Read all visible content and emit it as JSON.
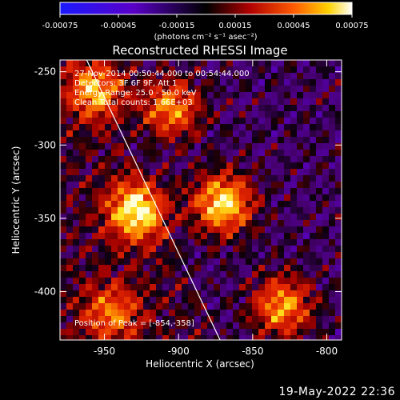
{
  "chart_data": {
    "type": "heatmap",
    "title": "Reconstructed RHESSI Image",
    "xlabel": "Heliocentric X (arcsec)",
    "ylabel": "Heliocentric Y (arcsec)",
    "xlim": [
      -980,
      -790
    ],
    "ylim": [
      -433,
      -242
    ],
    "x_ticks": [
      "-950",
      "-900",
      "-850",
      "-800"
    ],
    "x_tick_values": [
      -950,
      -900,
      -850,
      -800
    ],
    "y_ticks": [
      "-250",
      "-300",
      "-350",
      "-400"
    ],
    "y_tick_values": [
      -250,
      -300,
      -350,
      -400
    ],
    "colorbar": {
      "ticks": [
        "-0.00075",
        "-0.00045",
        "-0.00015",
        "0.00015",
        "0.00045",
        "0.00075"
      ],
      "tick_values": [
        -0.00075,
        -0.00045,
        -0.00015,
        0.00015,
        0.00045,
        0.00075
      ],
      "range": [
        -0.00075,
        0.00075
      ],
      "unit": "(photons cm⁻² s⁻¹ asec⁻²)"
    },
    "limb_line": {
      "x": [
        -962,
        -872
      ],
      "y": [
        -242,
        -433
      ]
    },
    "hot_spots": [
      {
        "x": -928,
        "y": -345,
        "level": 1.0
      },
      {
        "x": -870,
        "y": -340,
        "level": 1.0
      },
      {
        "x": -955,
        "y": -262,
        "level": 0.8
      },
      {
        "x": -905,
        "y": -275,
        "level": 0.75
      },
      {
        "x": -830,
        "y": -410,
        "level": 0.8
      },
      {
        "x": -945,
        "y": -415,
        "level": 0.6
      }
    ],
    "annotations": [
      "27-Nov-2014 00:50:44.000 to 00:54:44.000",
      "Detectors: 3F 6F 9F, Att 1",
      "Energy Range: 25.0 - 50.0 keV",
      "Clean    Total counts: 1.66E+03"
    ],
    "peak_label": "Position of Peak = [-854,-358]"
  },
  "footer": {
    "timestamp": "19-May-2022 22:36"
  }
}
